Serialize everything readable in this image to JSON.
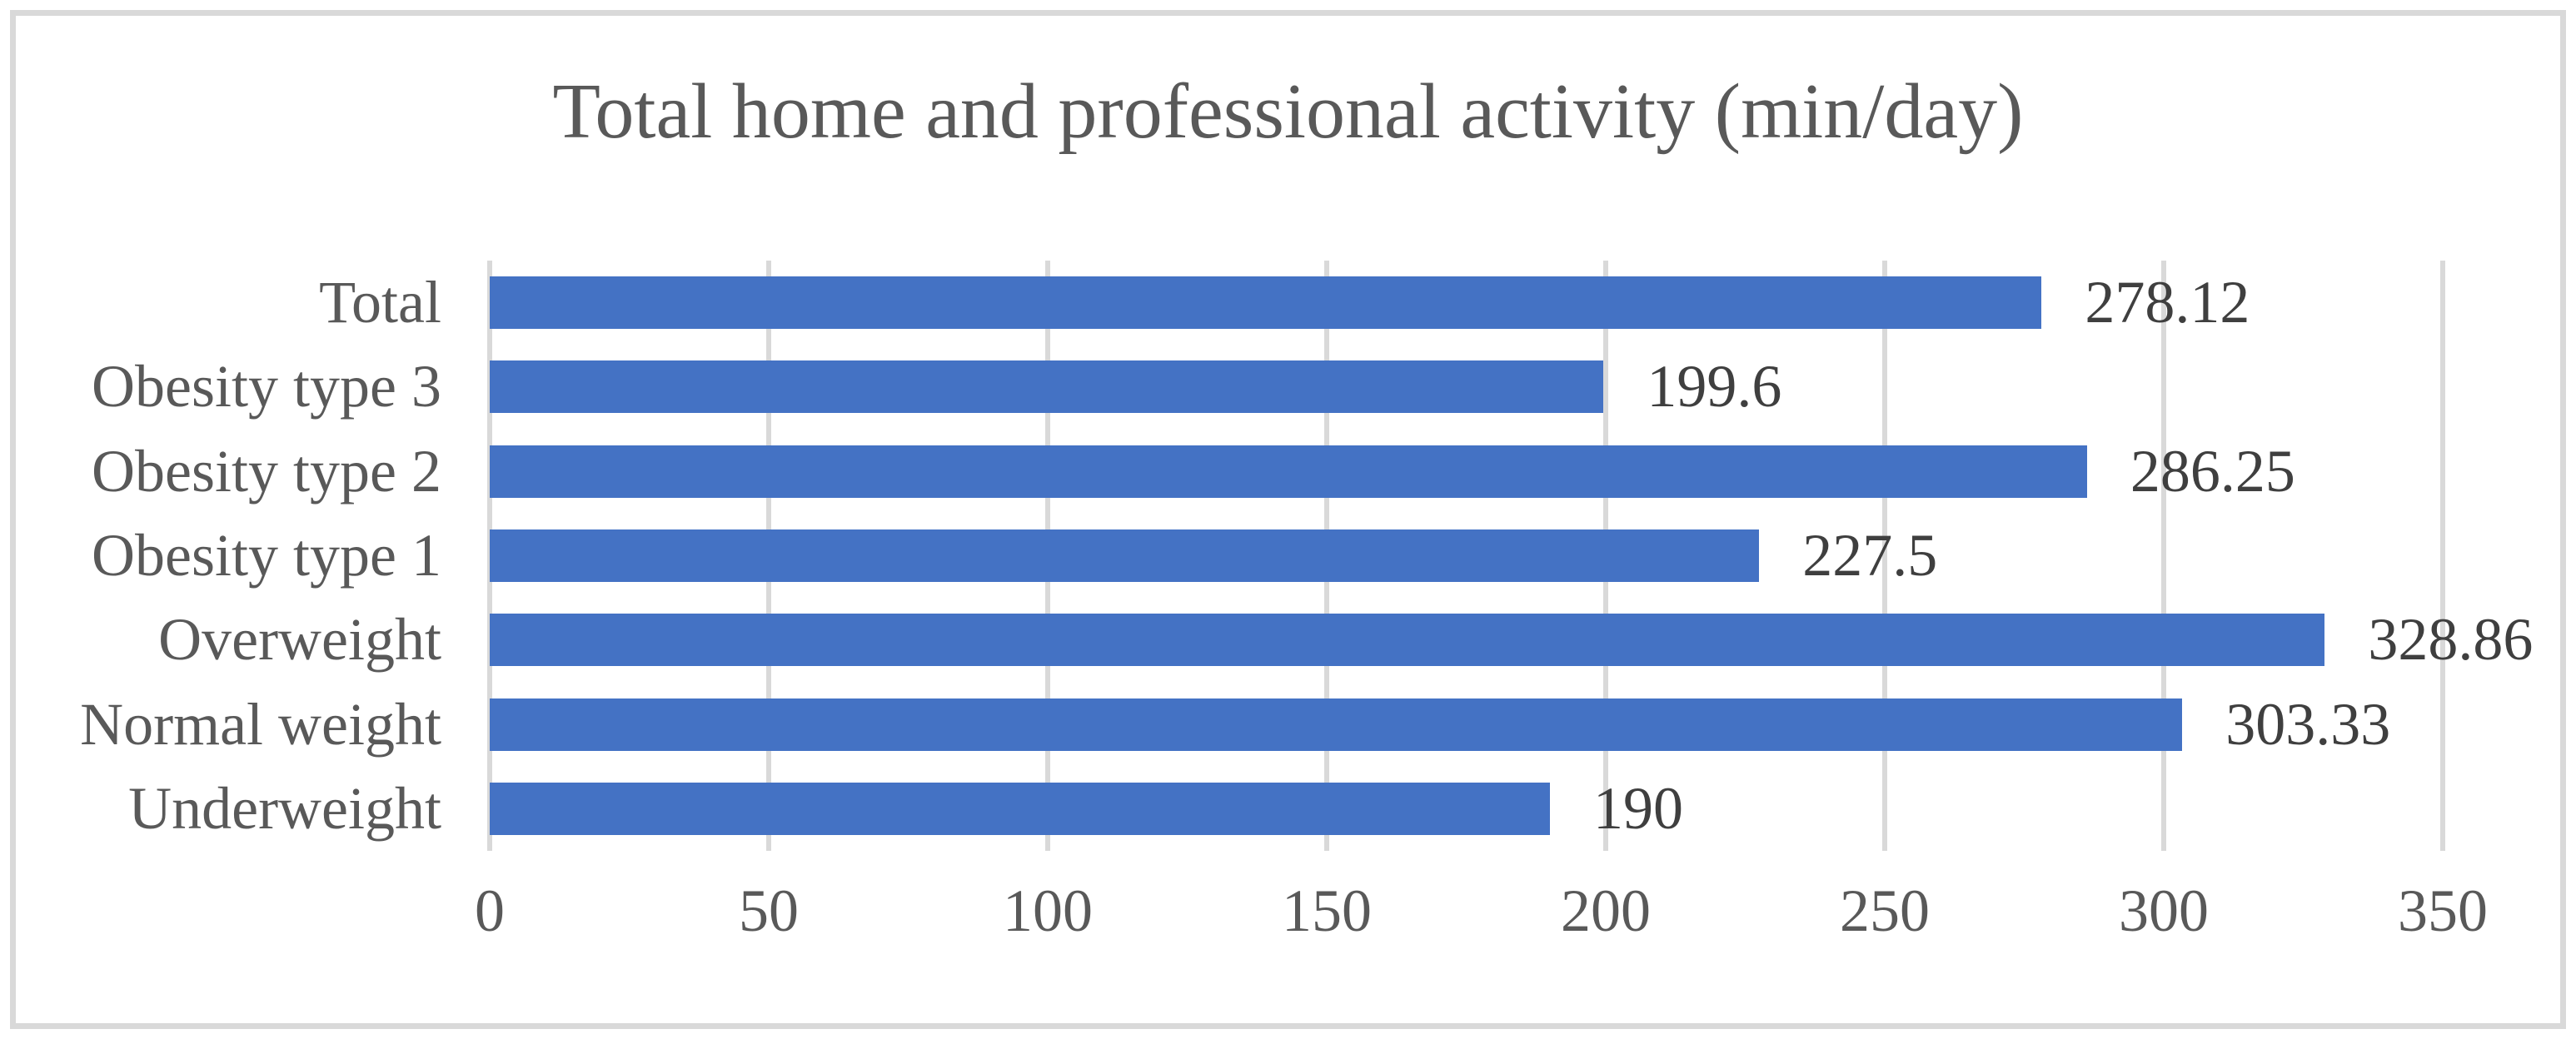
{
  "chart_data": {
    "type": "bar",
    "orientation": "horizontal",
    "title": "Total home and professional activity (min/day)",
    "categories": [
      "Total",
      "Obesity type 3",
      "Obesity type 2",
      "Obesity type 1",
      "Overweight",
      "Normal weight",
      "Underweight"
    ],
    "values": [
      278.12,
      199.6,
      286.25,
      227.5,
      328.86,
      303.33,
      190
    ],
    "value_labels": [
      "278.12",
      "199.6",
      "286.25",
      "227.5",
      "328.86",
      "303.33",
      "190"
    ],
    "x_ticks": [
      "0",
      "50",
      "100",
      "150",
      "200",
      "250",
      "300",
      "350"
    ],
    "xlim": [
      0,
      350
    ],
    "grid": true,
    "legend": "none",
    "xlabel": "",
    "ylabel": "",
    "bar_color": "#4472C4",
    "grid_color": "#D9D9D9",
    "title_color": "#595959",
    "axis_label_color": "#595959",
    "value_label_color": "#3F3F3F",
    "border_color": "#D9D9D9"
  }
}
